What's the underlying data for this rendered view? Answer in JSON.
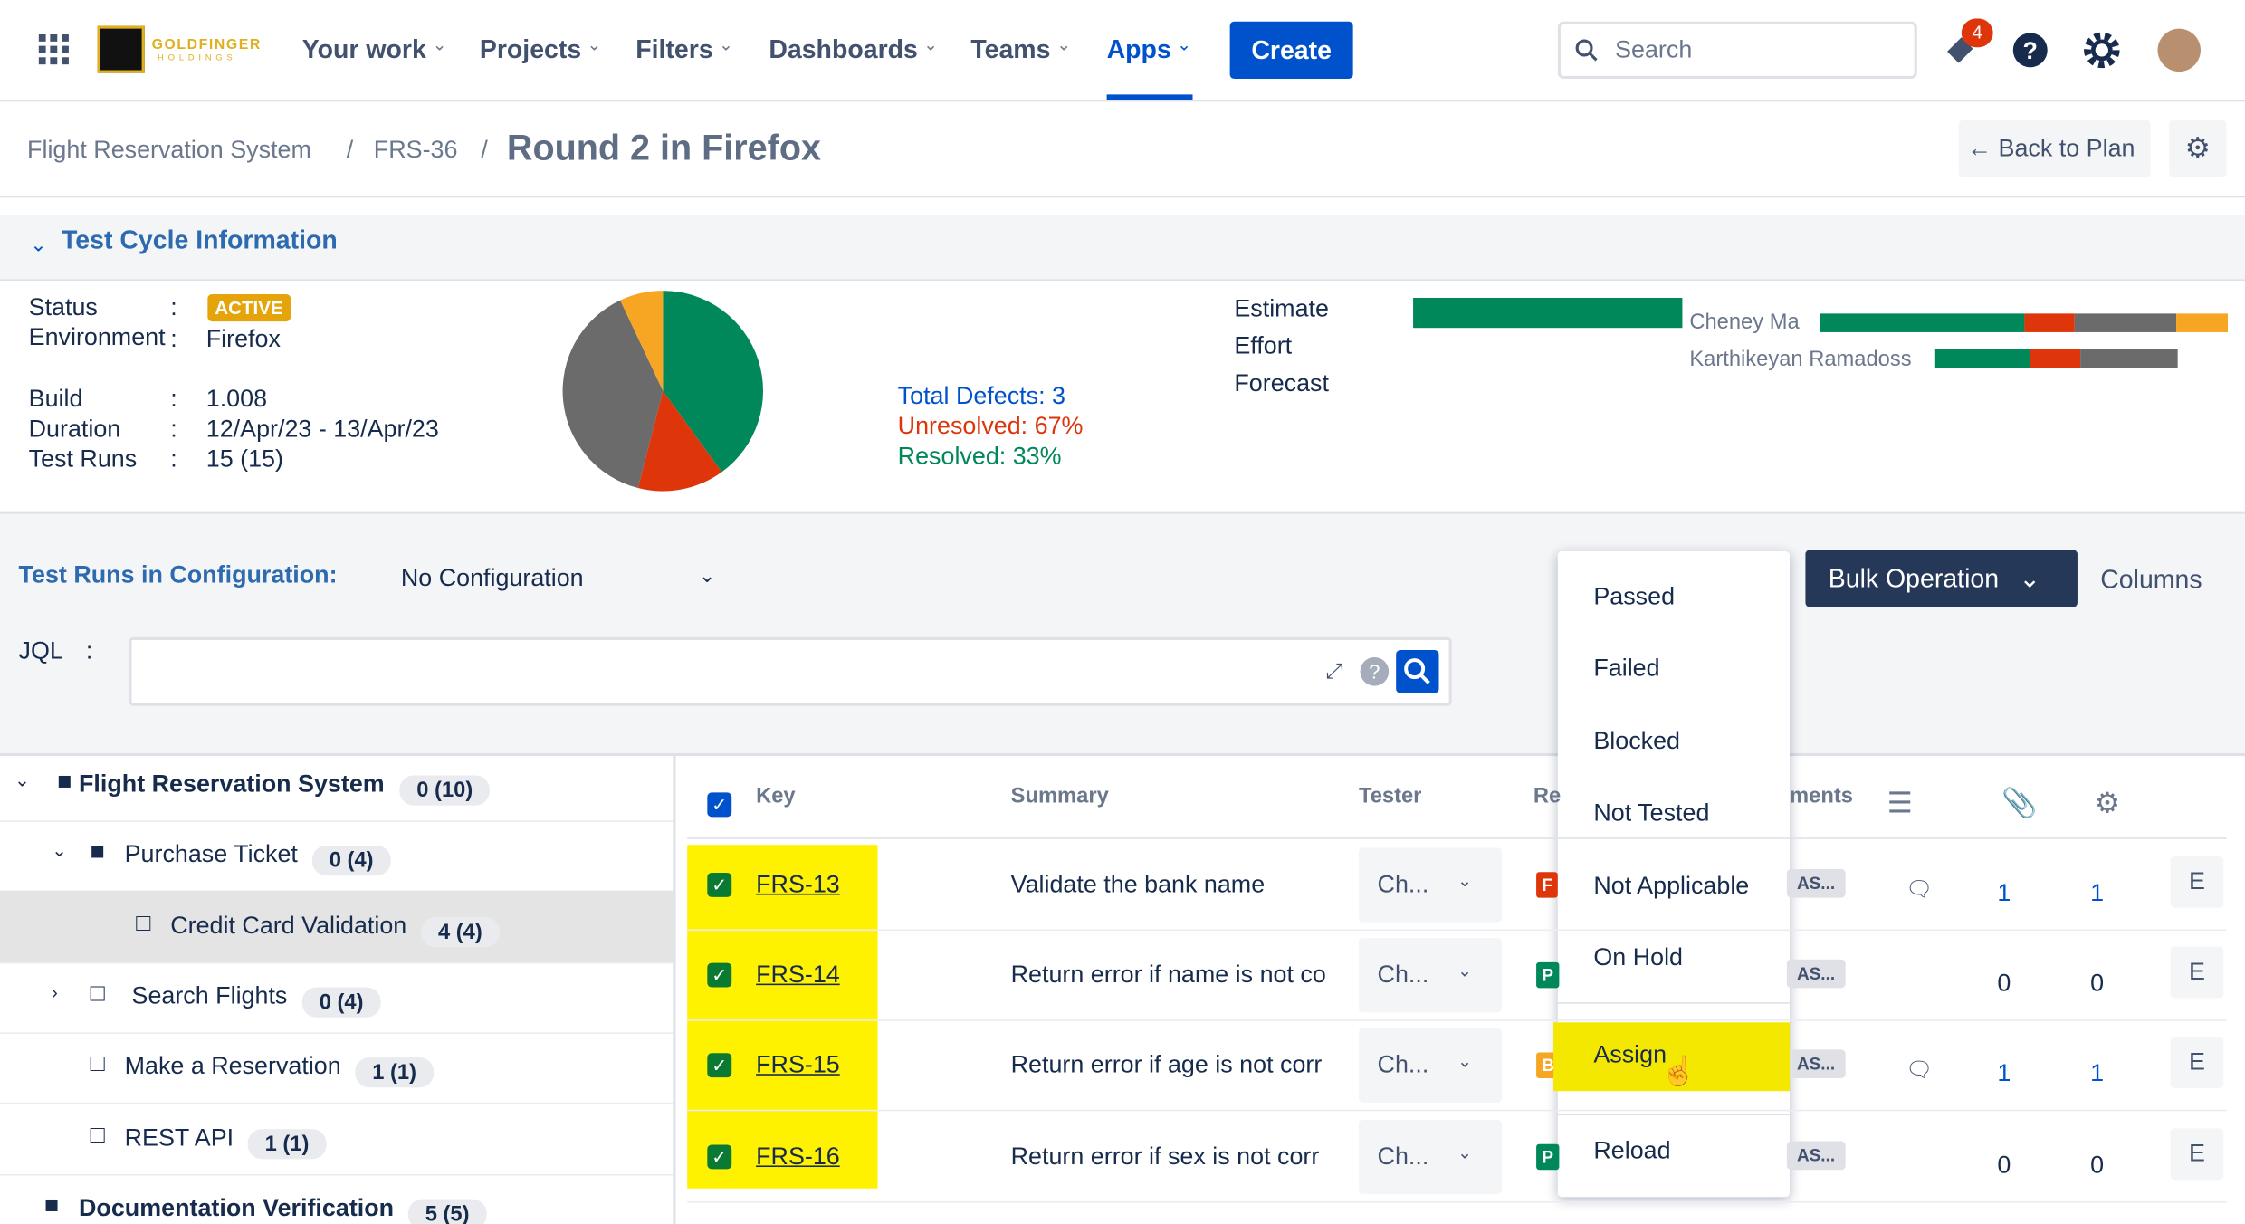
{
  "nav": {
    "logo": "GOLDFINGER",
    "logo_sub": "HOLDINGS",
    "items": [
      "Your work",
      "Projects",
      "Filters",
      "Dashboards",
      "Teams",
      "Apps"
    ],
    "create": "Create",
    "search": "Search",
    "notifications": "4"
  },
  "breadcrumb": [
    "Flight Reservation System",
    "FRS-36"
  ],
  "page_title": "Round 2 in Firefox",
  "back": "Back to Plan",
  "cycle": {
    "heading": "Test Cycle Information",
    "fields": [
      {
        "label": "Status",
        "value": "ACTIVE"
      },
      {
        "label": "Environment",
        "value": "Firefox"
      },
      {
        "label": "Build",
        "value": "1.008"
      },
      {
        "label": "Duration",
        "value": "12/Apr/23 - 13/Apr/23"
      },
      {
        "label": "Test Runs",
        "value": "15 (15)"
      }
    ],
    "pie": {
      "type": "pie",
      "values": [
        40,
        14,
        39,
        7
      ],
      "colors": [
        "#00875a",
        "#de350b",
        "#6b6b6b",
        "#f6a623"
      ]
    },
    "defects": [
      "Total Defects: 3",
      "Unresolved: 67%",
      "Resolved: 33%"
    ],
    "metrics": [
      "Estimate",
      "Effort",
      "Forecast"
    ],
    "people": [
      "Cheney Ma",
      "Karthikeyan Ramadoss"
    ]
  },
  "config": {
    "label": "Test Runs in Configuration:",
    "value": "No Configuration",
    "bulk": "Bulk Operation",
    "columns": "Columns",
    "jql": "JQL"
  },
  "menu": [
    "Passed",
    "Failed",
    "Blocked",
    "Not Tested",
    "Not Applicable",
    "On Hold",
    "Assign",
    "Reload"
  ],
  "tree": [
    {
      "label": "Flight Reservation System",
      "count": "0 (10)"
    },
    {
      "label": "Purchase Ticket",
      "count": "0 (4)"
    },
    {
      "label": "Credit Card Validation",
      "count": "4 (4)"
    },
    {
      "label": "Search Flights",
      "count": "0 (4)"
    },
    {
      "label": "Make a Reservation",
      "count": "1 (1)"
    },
    {
      "label": "REST API",
      "count": "1 (1)"
    },
    {
      "label": "Documentation Verification",
      "count": "5 (5)"
    }
  ],
  "table": {
    "headers": [
      "Key",
      "Summary",
      "Tester",
      "Re",
      "ments"
    ],
    "rows": [
      [
        "FRS-13",
        "Validate the bank name",
        "Ch...",
        "F",
        "AS...",
        "1",
        "1",
        "E"
      ],
      [
        "FRS-14",
        "Return error if name is not co",
        "Ch...",
        "P",
        "AS...",
        "0",
        "0",
        "E"
      ],
      [
        "FRS-15",
        "Return error if age is not corr",
        "Ch...",
        "B",
        "AS...",
        "1",
        "1",
        "E"
      ],
      [
        "FRS-16",
        "Return error if sex is not corr",
        "Ch...",
        "P",
        "AS...",
        "0",
        "0",
        "E"
      ]
    ]
  }
}
